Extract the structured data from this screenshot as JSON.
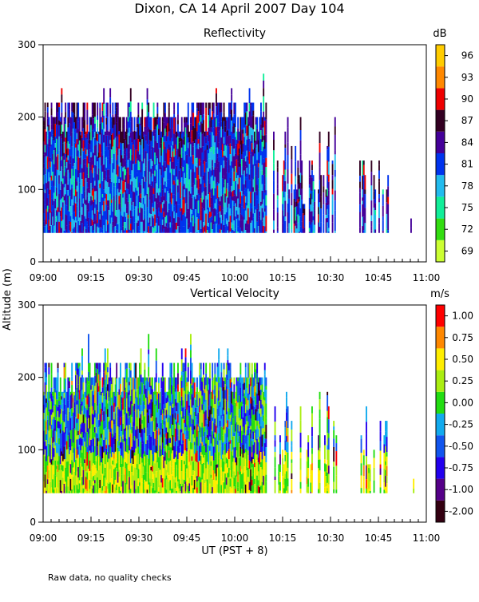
{
  "figure": {
    "title": "Dixon, CA 14 April 2007  Day 104",
    "shared_ylabel": "Altitude (m)",
    "shared_xlabel": "UT  (PST + 8)",
    "note": "Raw data, no quality checks"
  },
  "colors": {
    "reflectivity_scale": [
      "#ccff33",
      "#33dd11",
      "#11ee99",
      "#22bbee",
      "#0033ee",
      "#440099",
      "#330022",
      "#ee0000",
      "#ff8800",
      "#ffcc00"
    ],
    "velocity_scale": [
      "#330011",
      "#550088",
      "#2200ee",
      "#1155ee",
      "#11aaee",
      "#22dd11",
      "#aaee11",
      "#ffee00",
      "#ff8800",
      "#ff0000"
    ]
  },
  "chart_data": [
    {
      "type": "heatmap",
      "title": "Reflectivity",
      "colorbar_unit": "dB",
      "colorbar_ticks": [
        69,
        72,
        75,
        78,
        81,
        84,
        87,
        90,
        93,
        96
      ],
      "ylim": [
        0,
        300
      ],
      "yticks": [
        0,
        100,
        200,
        300
      ],
      "xlim": [
        "09:00",
        "11:00"
      ],
      "xticks": [
        "09:00",
        "09:15",
        "09:30",
        "09:45",
        "10:00",
        "10:15",
        "10:30",
        "10:45",
        "11:00"
      ],
      "data_extent": {
        "altitude_m": [
          40,
          260
        ]
      },
      "segments": [
        {
          "time": [
            "09:00",
            "10:10"
          ],
          "top_m": [
            180,
            260
          ],
          "base_m": 40,
          "dominant_db": [
            75,
            87
          ]
        },
        {
          "time": [
            "10:12",
            "10:32"
          ],
          "top_m": [
            80,
            200
          ],
          "base_m": 40,
          "dominant_db": [
            78,
            84
          ]
        },
        {
          "time": [
            "10:39",
            "10:48"
          ],
          "top_m": [
            80,
            160
          ],
          "base_m": 40,
          "dominant_db": [
            78,
            84
          ]
        },
        {
          "time": [
            "10:55",
            "10:56"
          ],
          "top_m": [
            60,
            60
          ],
          "base_m": 40,
          "dominant_db": [
            81,
            81
          ]
        }
      ]
    },
    {
      "type": "heatmap",
      "title": "Vertical Velocity",
      "colorbar_unit": "m/s",
      "colorbar_ticks": [
        "-2.00",
        "-1.00",
        "-0.75",
        "-0.50",
        "-0.25",
        "0.00",
        "0.25",
        "0.50",
        "0.75",
        "1.00"
      ],
      "ylim": [
        0,
        300
      ],
      "yticks": [
        0,
        100,
        200,
        300
      ],
      "xlim": [
        "09:00",
        "11:00"
      ],
      "xticks": [
        "09:00",
        "09:15",
        "09:30",
        "09:45",
        "10:00",
        "10:15",
        "10:30",
        "10:45",
        "11:00"
      ],
      "data_extent": {
        "altitude_m": [
          40,
          260
        ]
      },
      "segments": [
        {
          "time": [
            "09:00",
            "10:10"
          ],
          "top_m": [
            180,
            260
          ],
          "base_m": 40,
          "dominant_ms": [
            -0.75,
            0.5
          ]
        },
        {
          "time": [
            "10:12",
            "10:32"
          ],
          "top_m": [
            80,
            200
          ],
          "base_m": 40,
          "dominant_ms": [
            -0.75,
            0.25
          ]
        },
        {
          "time": [
            "10:39",
            "10:48"
          ],
          "top_m": [
            80,
            160
          ],
          "base_m": 40,
          "dominant_ms": [
            -0.75,
            0.25
          ]
        },
        {
          "time": [
            "10:55",
            "10:56"
          ],
          "top_m": [
            60,
            60
          ],
          "base_m": 40,
          "dominant_ms": [
            -1.0,
            -1.0
          ]
        }
      ]
    }
  ]
}
